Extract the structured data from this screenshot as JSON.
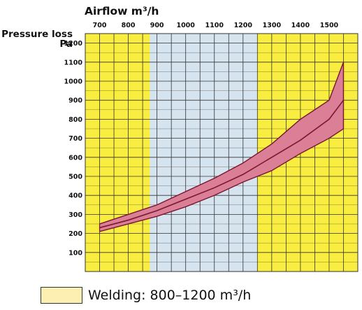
{
  "chart_data": {
    "type": "area",
    "title": "",
    "xlabel": "Airflow m³/h",
    "ylabel_line1": "Pressure loss",
    "ylabel_line2": "Pa",
    "x_ticks": [
      "700",
      "800",
      "900",
      "1000",
      "1100",
      "1200",
      "1300",
      "1400",
      "1500"
    ],
    "y_ticks": [
      "100",
      "200",
      "300",
      "400",
      "500",
      "600",
      "700",
      "800",
      "900",
      "1000",
      "1100",
      "1200"
    ],
    "xlim": [
      650,
      1600
    ],
    "ylim": [
      0,
      1250
    ],
    "grid": true,
    "series": [
      {
        "x": [
          700,
          800,
          900,
          1000,
          1100,
          1200,
          1300,
          1400,
          1500
        ],
        "upper": [
          250,
          300,
          350,
          420,
          490,
          570,
          670,
          800,
          900
        ],
        "lower": [
          210,
          250,
          290,
          340,
          400,
          470,
          530,
          620,
          700
        ]
      },
      {
        "x": [
          1500,
          1550
        ],
        "upper": [
          900,
          1100
        ],
        "lower": [
          700,
          750
        ]
      }
    ],
    "center_line": {
      "x": [
        700,
        800,
        900,
        1000,
        1100,
        1200,
        1300,
        1400,
        1500,
        1550
      ],
      "y": [
        230,
        270,
        320,
        380,
        440,
        510,
        600,
        690,
        800,
        900
      ]
    },
    "band_color": "#db7f97",
    "band_edge_color": "#7a1830",
    "yellow_color": "#f9ee3f",
    "blue_color": "#d6e4f0",
    "grid_color": "#333333",
    "highlight_range": [
      875,
      1250
    ],
    "legend": {
      "label": "Welding: 800–1200 m³/h",
      "swatch_color": "#fdeeb2"
    }
  }
}
